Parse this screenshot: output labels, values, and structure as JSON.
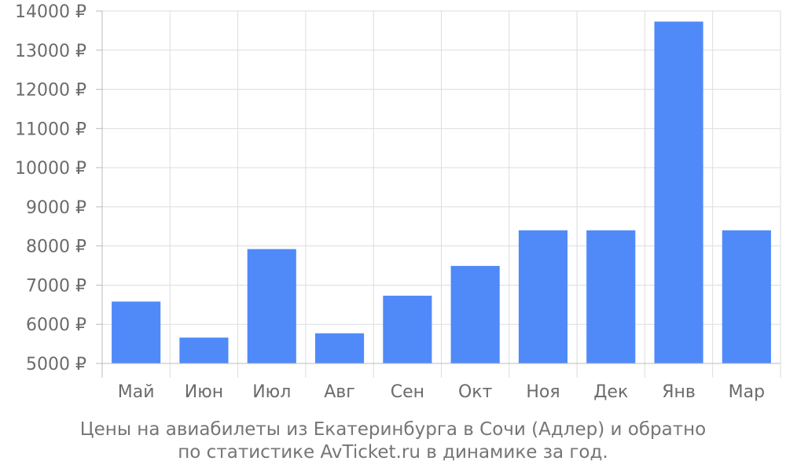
{
  "chart_data": {
    "type": "bar",
    "categories": [
      "Май",
      "Июн",
      "Июл",
      "Авг",
      "Сен",
      "Окт",
      "Ноя",
      "Дек",
      "Янв",
      "Мар"
    ],
    "values": [
      6580,
      5660,
      7920,
      5770,
      6730,
      7490,
      8400,
      8400,
      13730,
      8400
    ],
    "y_ticks": [
      "5000 ₽",
      "6000 ₽",
      "7000 ₽",
      "8000 ₽",
      "9000 ₽",
      "10000 ₽",
      "11000 ₽",
      "12000 ₽",
      "13000 ₽",
      "14000 ₽"
    ],
    "ylim": [
      5000,
      14000
    ],
    "grid": true,
    "bar_color": "#4f8af8",
    "caption_lines": [
      "Цены на авиабилеты из Екатеринбурга в Сочи (Адлер) и обратно",
      "по статистике AvTicket.ru в динамике за год."
    ]
  }
}
